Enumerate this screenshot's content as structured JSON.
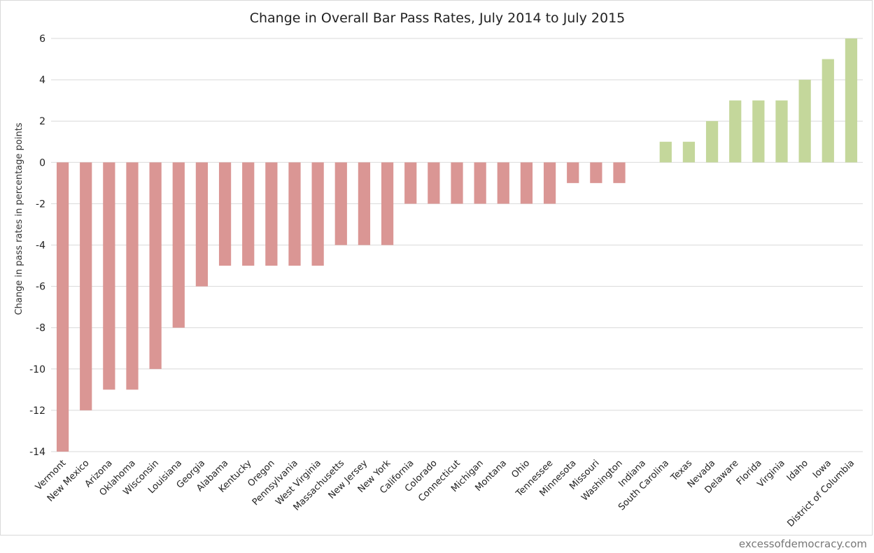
{
  "chart_data": {
    "type": "bar",
    "title": "Change in Overall Bar Pass Rates, July 2014 to July 2015",
    "xlabel": "",
    "ylabel": "Change in pass rates in percentage points",
    "ylim": [
      -14,
      6
    ],
    "yticks": [
      6,
      4,
      2,
      0,
      -2,
      -4,
      -6,
      -8,
      -10,
      -12,
      -14
    ],
    "grid": true,
    "legend": "none",
    "categories": [
      "Vermont",
      "New Mexico",
      "Arizona",
      "Oklahoma",
      "Wisconsin",
      "Louisiana",
      "Georgia",
      "Alabama",
      "Kentucky",
      "Oregon",
      "Pennsylvania",
      "West Virginia",
      "Massachusetts",
      "New Jersey",
      "New York",
      "California",
      "Colorado",
      "Connecticut",
      "Michigan",
      "Montana",
      "Ohio",
      "Tennessee",
      "Minnesota",
      "Missouri",
      "Washington",
      "Indiana",
      "South Carolina",
      "Texas",
      "Nevada",
      "Delaware",
      "Florida",
      "Virginia",
      "Idaho",
      "Iowa",
      "District of Columbia"
    ],
    "values": [
      -14,
      -12,
      -11,
      -11,
      -10,
      -8,
      -6,
      -5,
      -5,
      -5,
      -5,
      -5,
      -4,
      -4,
      -4,
      -2,
      -2,
      -2,
      -2,
      -2,
      -2,
      -2,
      -1,
      -1,
      -1,
      0,
      1,
      1,
      2,
      3,
      3,
      3,
      4,
      5,
      6
    ],
    "colors": {
      "negative": "#da9694",
      "positive": "#c4d79b",
      "grid": "#d9d9d9"
    }
  },
  "watermark": "excessofdemocracy.com"
}
